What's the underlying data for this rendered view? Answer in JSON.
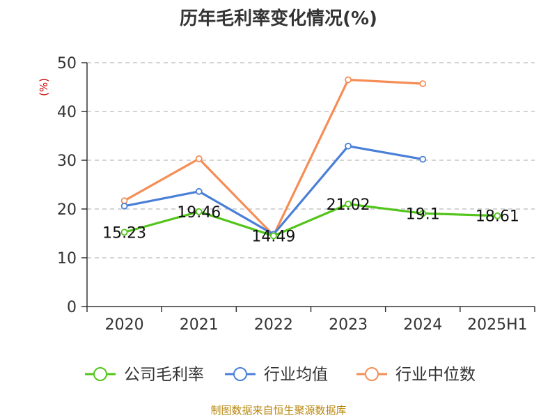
{
  "chart_data": {
    "type": "line",
    "title": "历年毛利率变化情况(%)",
    "ylabel": "(%)",
    "xlabel": "",
    "categories": [
      "2020",
      "2021",
      "2022",
      "2023",
      "2024",
      "2025H1"
    ],
    "ylim": [
      0,
      50
    ],
    "yticks": [
      0,
      10,
      20,
      30,
      40,
      50
    ],
    "grid": true,
    "legend_position": "bottom",
    "series": [
      {
        "name": "公司毛利率",
        "color": "#52c41a",
        "values": [
          15.23,
          19.46,
          14.49,
          21.02,
          19.1,
          18.61
        ],
        "labels": [
          "15.23",
          "19.46",
          "14.49",
          "21.02",
          "19.1",
          "18.61"
        ]
      },
      {
        "name": "行业均值",
        "color": "#4a7fd8",
        "values": [
          20.6,
          23.6,
          14.8,
          32.9,
          30.2,
          null
        ]
      },
      {
        "name": "行业中位数",
        "color": "#f58d55",
        "values": [
          21.7,
          30.3,
          14.6,
          46.5,
          45.7,
          null
        ]
      }
    ]
  },
  "source_note": "制图数据来自恒生聚源数据库"
}
